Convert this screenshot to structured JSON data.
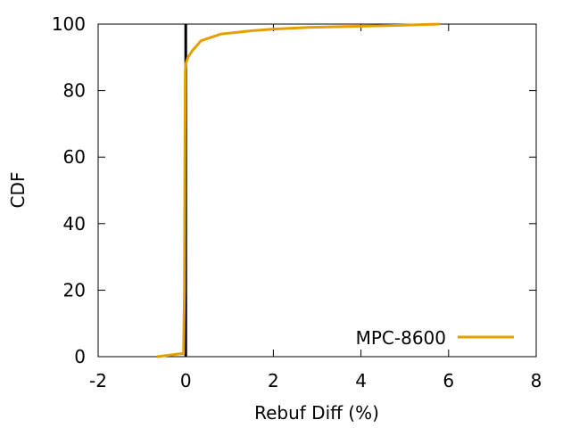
{
  "chart_data": {
    "type": "line",
    "title": "",
    "xlabel": "Rebuf Diff (%)",
    "ylabel": "CDF",
    "xlim": [
      -2,
      8
    ],
    "ylim": [
      0,
      100
    ],
    "x_ticks": [
      "-2",
      "0",
      "2",
      "4",
      "6",
      "8"
    ],
    "y_ticks": [
      "0",
      "20",
      "40",
      "60",
      "80",
      "100"
    ],
    "legend_position": "bottom-right",
    "reference_line": {
      "x": 0,
      "color": "#000000"
    },
    "series": [
      {
        "name": "MPC-8600",
        "color": "#e69f00",
        "x": [
          -0.65,
          -0.05,
          -0.03,
          -0.02,
          -0.01,
          0.0,
          0.05,
          0.15,
          0.35,
          0.8,
          1.5,
          2.0,
          2.8,
          3.8,
          4.8,
          5.8
        ],
        "y": [
          0,
          1,
          20,
          60,
          86,
          88,
          90,
          92,
          95,
          97,
          98,
          98.5,
          99,
          99.3,
          99.6,
          100
        ]
      }
    ]
  }
}
